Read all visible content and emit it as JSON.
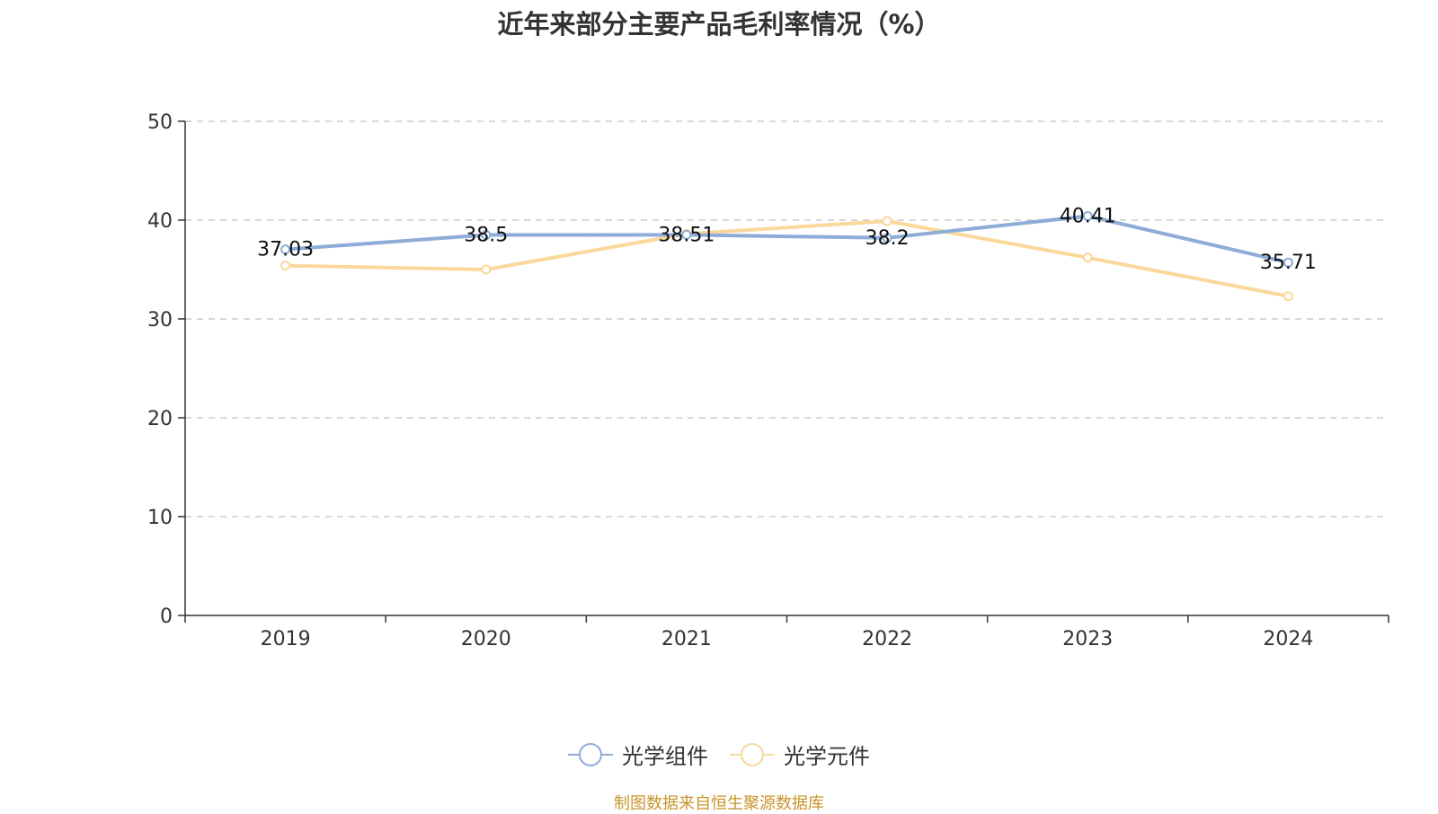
{
  "title": "近年来部分主要产品毛利率情况（%）",
  "source": "制图数据来自恒生聚源数据库",
  "chart_data": {
    "type": "line",
    "categories": [
      "2019",
      "2020",
      "2021",
      "2022",
      "2023",
      "2024"
    ],
    "ylim": [
      0,
      50
    ],
    "yticks": [
      0,
      10,
      20,
      30,
      40,
      50
    ],
    "grid": true,
    "legend_position": "bottom",
    "series": [
      {
        "name": "光学组件",
        "color": "#8eacd8",
        "values": [
          37.03,
          38.5,
          38.51,
          38.2,
          40.41,
          35.71
        ],
        "labels": [
          "37.03",
          "38.5",
          "38.51",
          "38.2",
          "40.41",
          "35.71"
        ]
      },
      {
        "name": "光学元件",
        "color": "#f9d89a",
        "values": [
          35.4,
          35.0,
          38.6,
          39.9,
          36.2,
          32.3
        ],
        "labels": []
      }
    ]
  }
}
